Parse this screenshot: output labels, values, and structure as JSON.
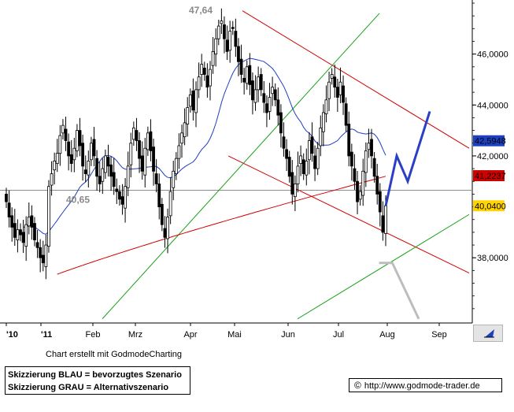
{
  "chart_data": {
    "type": "candlestick",
    "x_tick_labels": [
      "'10",
      "'11",
      "Feb",
      "Mrz",
      "Apr",
      "Mai",
      "Jun",
      "Jul",
      "Aug",
      "Sep"
    ],
    "y_tick_labels": [
      "46,0000",
      "44,0000",
      "42,0000",
      "38,0000"
    ],
    "ylim": [
      35.5,
      48
    ],
    "price_tags": [
      {
        "value": 42.5948,
        "label": "42,5948",
        "color": "#1e3fbf",
        "role": "ma-short"
      },
      {
        "value": 41.2237,
        "label": "41,2237",
        "color": "#d00000",
        "role": "ma-long"
      },
      {
        "value": 40.04,
        "label": "40,0400",
        "color": "#ffd400",
        "role": "last"
      }
    ],
    "annotations": [
      {
        "text": "47,64",
        "value": 47.64
      },
      {
        "text": "40,65",
        "value": 40.65
      }
    ],
    "horizontal_line": 40.65,
    "closes": [
      40.2,
      39.6,
      39.2,
      38.8,
      39.1,
      38.9,
      38.6,
      39.3,
      39.6,
      39.2,
      38.7,
      38.4,
      38.0,
      37.8,
      38.5,
      40.8,
      41.3,
      41.8,
      42.1,
      42.8,
      43.2,
      42.6,
      42.0,
      41.7,
      42.3,
      43.0,
      42.4,
      41.6,
      41.3,
      41.8,
      42.5,
      42.0,
      41.2,
      40.9,
      41.5,
      42.0,
      41.6,
      41.2,
      40.8,
      40.6,
      40.3,
      40.1,
      40.8,
      41.6,
      42.5,
      43.1,
      42.6,
      41.9,
      41.4,
      42.3,
      42.9,
      42.2,
      41.4,
      40.9,
      40.0,
      39.3,
      38.8,
      39.6,
      40.6,
      41.4,
      41.9,
      42.4,
      42.9,
      43.3,
      43.9,
      44.4,
      43.8,
      44.6,
      45.1,
      45.6,
      45.2,
      44.7,
      45.4,
      46.1,
      46.6,
      47.1,
      47.3,
      46.6,
      46.1,
      46.9,
      47.0,
      46.3,
      45.7,
      45.2,
      44.9,
      45.5,
      44.8,
      44.2,
      44.6,
      45.1,
      44.6,
      44.1,
      43.7,
      44.3,
      44.7,
      44.2,
      43.6,
      42.9,
      42.3,
      41.9,
      41.2,
      40.5,
      40.9,
      41.6,
      42.0,
      41.3,
      41.8,
      42.6,
      42.1,
      41.5,
      42.3,
      43.1,
      43.7,
      44.2,
      44.9,
      45.2,
      44.7,
      44.3,
      44.9,
      44.1,
      43.2,
      42.0,
      41.6,
      41.0,
      40.2,
      40.6,
      41.4,
      42.2,
      42.5,
      42.0,
      41.2,
      40.5,
      39.8,
      39.0,
      40.04
    ],
    "blue_scenario": [
      [
        40.04,
        "d0"
      ],
      [
        42.0,
        "d5"
      ],
      [
        41.0,
        "d10"
      ],
      [
        43.75,
        "d20"
      ]
    ],
    "grey_scenario": [
      [
        37.8,
        "d-3"
      ],
      [
        37.8,
        "d3"
      ],
      [
        35.6,
        "d15"
      ]
    ]
  },
  "texts": {
    "credit": "Chart erstellt mit GodmodeCharting",
    "legend_blue": "Skizzierung BLAU = bevorzugtes Szenario",
    "legend_grey": "Skizzierung GRAU = Alternativszenario",
    "copyright": "©",
    "url": "http://www.godmode-trader.de"
  },
  "colors": {
    "candle": "#000000",
    "ma_short": "#1e3fbf",
    "ma_long": "#d00000",
    "trend_red": "#d00000",
    "trend_green": "#1aa01a",
    "scenario_blue": "#2a3fc4",
    "scenario_grey": "#bdbdbd",
    "axis_bg": "#ffffff",
    "chart_bg": "#ffffff"
  }
}
